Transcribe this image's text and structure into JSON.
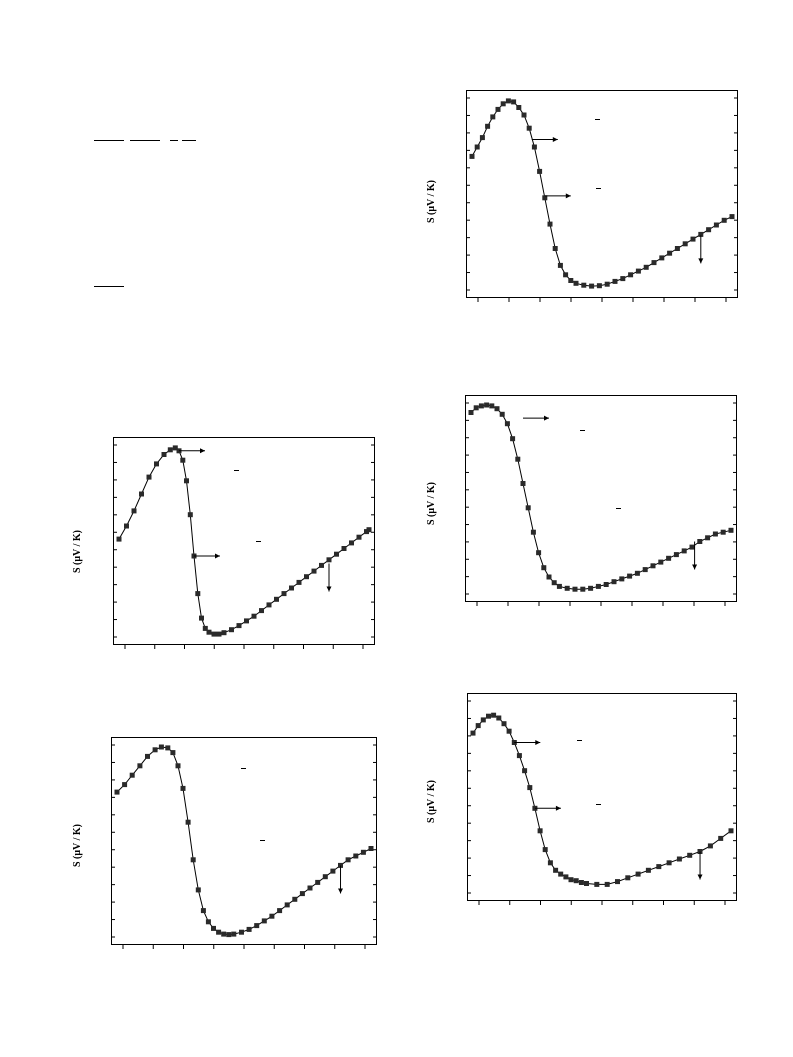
{
  "page": {
    "background": "#ffffff",
    "ink": "#000000",
    "marker_color": "#2a2a2a",
    "fit_color": "#000000"
  },
  "chart_data": [
    {
      "type": "scatter",
      "title": "",
      "ylabel": "S (μV / K)",
      "xlabel": "",
      "grid": false,
      "legend": "none",
      "x_ticks": 9,
      "y_ticks": 12,
      "values": [
        [
          0.0,
          0.51
        ],
        [
          0.03,
          0.58
        ],
        [
          0.06,
          0.66
        ],
        [
          0.09,
          0.75
        ],
        [
          0.12,
          0.84
        ],
        [
          0.15,
          0.91
        ],
        [
          0.18,
          0.96
        ],
        [
          0.205,
          0.985
        ],
        [
          0.225,
          0.995
        ],
        [
          0.24,
          0.98
        ],
        [
          0.255,
          0.93
        ],
        [
          0.27,
          0.82
        ],
        [
          0.285,
          0.64
        ],
        [
          0.3,
          0.42
        ],
        [
          0.315,
          0.22
        ],
        [
          0.33,
          0.09
        ],
        [
          0.345,
          0.035
        ],
        [
          0.36,
          0.015
        ],
        [
          0.38,
          0.005
        ],
        [
          0.4,
          0.005
        ],
        [
          0.42,
          0.012
        ],
        [
          0.45,
          0.028
        ],
        [
          0.48,
          0.05
        ],
        [
          0.51,
          0.075
        ],
        [
          0.54,
          0.1
        ],
        [
          0.57,
          0.13
        ],
        [
          0.6,
          0.16
        ],
        [
          0.63,
          0.19
        ],
        [
          0.66,
          0.22
        ],
        [
          0.69,
          0.25
        ],
        [
          0.72,
          0.28
        ],
        [
          0.75,
          0.31
        ],
        [
          0.78,
          0.34
        ],
        [
          0.81,
          0.37
        ],
        [
          0.84,
          0.4
        ],
        [
          0.87,
          0.43
        ],
        [
          0.9,
          0.46
        ],
        [
          0.93,
          0.49
        ],
        [
          0.96,
          0.52
        ],
        [
          0.99,
          0.55
        ],
        [
          1.0,
          0.56
        ]
      ],
      "annotations": [
        {
          "kind": "right-arrow",
          "x": 0.24,
          "y": 0.98
        },
        {
          "kind": "right-arrow",
          "x": 0.3,
          "y": 0.42
        },
        {
          "kind": "down-arrow",
          "x": 0.84,
          "y": 0.38
        }
      ]
    },
    {
      "type": "scatter",
      "title": "",
      "ylabel": "S (μV / K)",
      "xlabel": "",
      "grid": false,
      "legend": "none",
      "x_ticks": 9,
      "y_ticks": 12,
      "values": [
        [
          0.0,
          0.76
        ],
        [
          0.03,
          0.8
        ],
        [
          0.06,
          0.85
        ],
        [
          0.09,
          0.9
        ],
        [
          0.12,
          0.95
        ],
        [
          0.15,
          0.985
        ],
        [
          0.175,
          1.0
        ],
        [
          0.2,
          0.995
        ],
        [
          0.22,
          0.97
        ],
        [
          0.24,
          0.9
        ],
        [
          0.26,
          0.78
        ],
        [
          0.28,
          0.6
        ],
        [
          0.3,
          0.4
        ],
        [
          0.32,
          0.24
        ],
        [
          0.34,
          0.13
        ],
        [
          0.36,
          0.07
        ],
        [
          0.38,
          0.035
        ],
        [
          0.4,
          0.015
        ],
        [
          0.42,
          0.005
        ],
        [
          0.44,
          0.002
        ],
        [
          0.46,
          0.005
        ],
        [
          0.49,
          0.015
        ],
        [
          0.52,
          0.03
        ],
        [
          0.55,
          0.05
        ],
        [
          0.58,
          0.075
        ],
        [
          0.61,
          0.1
        ],
        [
          0.64,
          0.13
        ],
        [
          0.67,
          0.16
        ],
        [
          0.7,
          0.19
        ],
        [
          0.73,
          0.22
        ],
        [
          0.76,
          0.25
        ],
        [
          0.79,
          0.28
        ],
        [
          0.82,
          0.31
        ],
        [
          0.85,
          0.34
        ],
        [
          0.88,
          0.37
        ],
        [
          0.91,
          0.4
        ],
        [
          0.94,
          0.42
        ],
        [
          0.97,
          0.44
        ],
        [
          1.0,
          0.46
        ]
      ],
      "annotations": [
        {
          "kind": "down-arrow",
          "x": 0.88,
          "y": 0.37
        }
      ]
    },
    {
      "type": "scatter",
      "title": "",
      "ylabel": "S (μV / K)",
      "xlabel": "",
      "grid": false,
      "legend": "none",
      "x_ticks": 9,
      "y_ticks": 12,
      "values": [
        [
          0.0,
          0.7
        ],
        [
          0.02,
          0.75
        ],
        [
          0.04,
          0.8
        ],
        [
          0.06,
          0.86
        ],
        [
          0.08,
          0.91
        ],
        [
          0.1,
          0.95
        ],
        [
          0.12,
          0.98
        ],
        [
          0.14,
          0.995
        ],
        [
          0.16,
          0.99
        ],
        [
          0.18,
          0.96
        ],
        [
          0.2,
          0.92
        ],
        [
          0.22,
          0.85
        ],
        [
          0.24,
          0.75
        ],
        [
          0.26,
          0.62
        ],
        [
          0.28,
          0.48
        ],
        [
          0.3,
          0.34
        ],
        [
          0.32,
          0.21
        ],
        [
          0.34,
          0.12
        ],
        [
          0.36,
          0.07
        ],
        [
          0.38,
          0.04
        ],
        [
          0.4,
          0.025
        ],
        [
          0.43,
          0.015
        ],
        [
          0.46,
          0.01
        ],
        [
          0.49,
          0.012
        ],
        [
          0.52,
          0.02
        ],
        [
          0.55,
          0.035
        ],
        [
          0.58,
          0.05
        ],
        [
          0.61,
          0.07
        ],
        [
          0.64,
          0.09
        ],
        [
          0.67,
          0.11
        ],
        [
          0.7,
          0.135
        ],
        [
          0.73,
          0.16
        ],
        [
          0.76,
          0.185
        ],
        [
          0.79,
          0.21
        ],
        [
          0.82,
          0.235
        ],
        [
          0.85,
          0.26
        ],
        [
          0.88,
          0.285
        ],
        [
          0.91,
          0.31
        ],
        [
          0.94,
          0.335
        ],
        [
          0.97,
          0.36
        ],
        [
          1.0,
          0.38
        ]
      ],
      "annotations": [
        {
          "kind": "right-arrow",
          "x": 0.23,
          "y": 0.79
        },
        {
          "kind": "right-arrow",
          "x": 0.28,
          "y": 0.49
        },
        {
          "kind": "down-arrow",
          "x": 0.88,
          "y": 0.28
        }
      ]
    },
    {
      "type": "scatter",
      "title": "",
      "ylabel": "S (μV / K)",
      "xlabel": "",
      "grid": false,
      "legend": "none",
      "x_ticks": 9,
      "y_ticks": 12,
      "values": [
        [
          0.0,
          0.96
        ],
        [
          0.02,
          0.985
        ],
        [
          0.04,
          0.995
        ],
        [
          0.06,
          1.0
        ],
        [
          0.08,
          0.995
        ],
        [
          0.1,
          0.98
        ],
        [
          0.12,
          0.95
        ],
        [
          0.14,
          0.9
        ],
        [
          0.16,
          0.82
        ],
        [
          0.18,
          0.71
        ],
        [
          0.2,
          0.58
        ],
        [
          0.22,
          0.45
        ],
        [
          0.24,
          0.32
        ],
        [
          0.26,
          0.21
        ],
        [
          0.28,
          0.13
        ],
        [
          0.3,
          0.08
        ],
        [
          0.32,
          0.05
        ],
        [
          0.34,
          0.03
        ],
        [
          0.37,
          0.02
        ],
        [
          0.4,
          0.015
        ],
        [
          0.43,
          0.015
        ],
        [
          0.46,
          0.02
        ],
        [
          0.49,
          0.03
        ],
        [
          0.52,
          0.04
        ],
        [
          0.55,
          0.055
        ],
        [
          0.58,
          0.07
        ],
        [
          0.61,
          0.085
        ],
        [
          0.64,
          0.1
        ],
        [
          0.67,
          0.12
        ],
        [
          0.7,
          0.14
        ],
        [
          0.73,
          0.16
        ],
        [
          0.76,
          0.18
        ],
        [
          0.79,
          0.2
        ],
        [
          0.82,
          0.22
        ],
        [
          0.85,
          0.24
        ],
        [
          0.88,
          0.27
        ],
        [
          0.91,
          0.29
        ],
        [
          0.94,
          0.31
        ],
        [
          0.97,
          0.32
        ],
        [
          1.0,
          0.33
        ]
      ],
      "annotations": [
        {
          "kind": "right-arrow",
          "x": 0.2,
          "y": 0.93
        },
        {
          "kind": "down-arrow",
          "x": 0.86,
          "y": 0.27
        }
      ]
    },
    {
      "type": "scatter",
      "title": "",
      "ylabel": "S (μV / K)",
      "xlabel": "",
      "grid": false,
      "legend": "none",
      "x_ticks": 9,
      "y_ticks": 12,
      "values": [
        [
          0.0,
          0.84
        ],
        [
          0.02,
          0.88
        ],
        [
          0.04,
          0.91
        ],
        [
          0.06,
          0.93
        ],
        [
          0.08,
          0.935
        ],
        [
          0.1,
          0.92
        ],
        [
          0.12,
          0.89
        ],
        [
          0.14,
          0.85
        ],
        [
          0.16,
          0.79
        ],
        [
          0.18,
          0.72
        ],
        [
          0.2,
          0.64
        ],
        [
          0.22,
          0.55
        ],
        [
          0.24,
          0.44
        ],
        [
          0.26,
          0.32
        ],
        [
          0.28,
          0.22
        ],
        [
          0.3,
          0.15
        ],
        [
          0.32,
          0.11
        ],
        [
          0.34,
          0.09
        ],
        [
          0.36,
          0.075
        ],
        [
          0.38,
          0.06
        ],
        [
          0.4,
          0.055
        ],
        [
          0.42,
          0.045
        ],
        [
          0.44,
          0.04
        ],
        [
          0.48,
          0.035
        ],
        [
          0.52,
          0.035
        ],
        [
          0.56,
          0.05
        ],
        [
          0.6,
          0.07
        ],
        [
          0.64,
          0.09
        ],
        [
          0.68,
          0.11
        ],
        [
          0.72,
          0.13
        ],
        [
          0.76,
          0.15
        ],
        [
          0.8,
          0.17
        ],
        [
          0.84,
          0.19
        ],
        [
          0.88,
          0.21
        ],
        [
          0.92,
          0.24
        ],
        [
          0.96,
          0.28
        ],
        [
          1.0,
          0.32
        ]
      ],
      "annotations": [
        {
          "kind": "right-arrow",
          "x": 0.16,
          "y": 0.79
        },
        {
          "kind": "right-arrow",
          "x": 0.24,
          "y": 0.44
        },
        {
          "kind": "down-arrow",
          "x": 0.88,
          "y": 0.21
        }
      ]
    }
  ]
}
